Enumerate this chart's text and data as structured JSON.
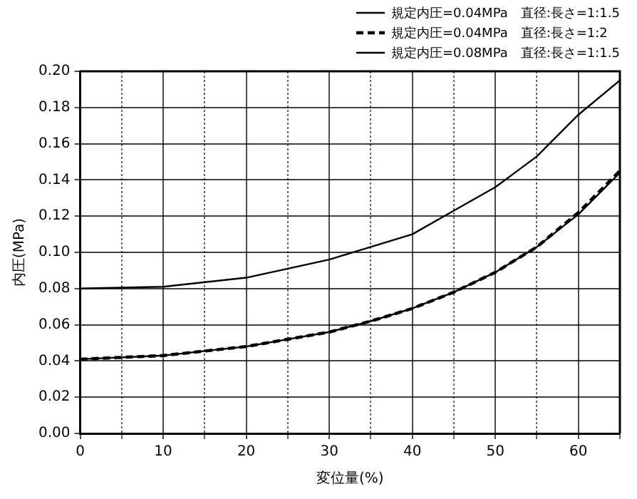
{
  "chart_data": {
    "type": "line",
    "xlabel": "変位量(%)",
    "ylabel": "内圧(MPa)",
    "x": [
      0,
      10,
      20,
      30,
      35,
      40,
      45,
      50,
      55,
      60,
      65
    ],
    "series": [
      {
        "name": "規定内圧=0.04MPa　直径:長さ=1:1.5",
        "color": "#000000",
        "line_style": "solid",
        "values": [
          0.041,
          0.043,
          0.048,
          0.056,
          0.062,
          0.069,
          0.078,
          0.089,
          0.103,
          0.121,
          0.144
        ]
      },
      {
        "name": "規定内圧=0.04MPa　直径:長さ=1:2",
        "color": "#000000",
        "line_style": "dashed",
        "values": [
          0.041,
          0.043,
          0.048,
          0.056,
          0.062,
          0.069,
          0.078,
          0.089,
          0.103,
          0.122,
          0.145
        ]
      },
      {
        "name": "規定内圧=0.08MPa　直径:長さ=1:1.5",
        "color": "#000000",
        "line_style": "solid",
        "values": [
          0.08,
          0.081,
          0.086,
          0.096,
          0.103,
          0.11,
          0.123,
          0.136,
          0.153,
          0.176,
          0.195
        ]
      }
    ],
    "xlim": [
      0,
      65
    ],
    "xticks": [
      0,
      {
        "value": 5,
        "label": null
      },
      10,
      {
        "value": 15,
        "label": null
      },
      20,
      {
        "value": 25,
        "label": null
      },
      30,
      {
        "value": 35,
        "label": null
      },
      40,
      {
        "value": 45,
        "label": null
      },
      50,
      {
        "value": 55,
        "label": null
      },
      60,
      {
        "value": 65,
        "label": null
      }
    ],
    "ylim": [
      0,
      0.2
    ],
    "yticks": [
      {
        "value": 0,
        "label": "0.00"
      },
      {
        "value": 0.02,
        "label": "0.02"
      },
      {
        "value": 0.04,
        "label": "0.04"
      },
      {
        "value": 0.06,
        "label": "0.06"
      },
      {
        "value": 0.08,
        "label": "0.08"
      },
      {
        "value": 0.1,
        "label": "0.10"
      },
      {
        "value": 0.12,
        "label": "0.12"
      },
      {
        "value": 0.14,
        "label": "0.14"
      },
      {
        "value": 0.16,
        "label": "0.16"
      },
      {
        "value": 0.18,
        "label": "0.18"
      },
      {
        "value": 0.2,
        "label": "0.20"
      }
    ],
    "grid": true,
    "legend": "top right",
    "marker": "none"
  }
}
